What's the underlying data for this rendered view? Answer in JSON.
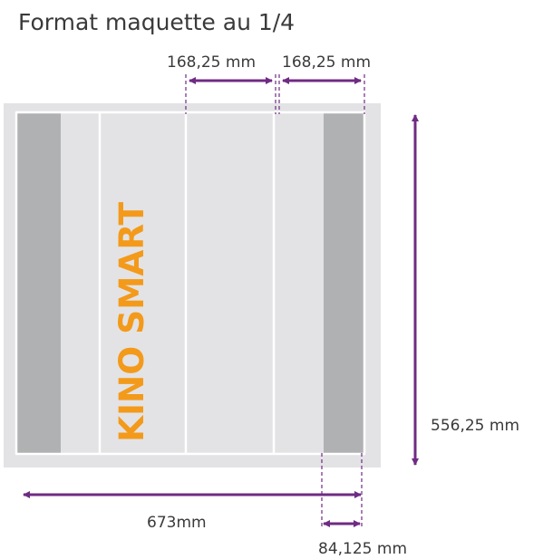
{
  "title": "Format maquette au 1/4",
  "brand": "KINO SMART",
  "dimensions": {
    "panel_width_1": "168,25 mm",
    "panel_width_2": "168,25 mm",
    "height": "556,25 mm",
    "total_width": "673mm",
    "side_width": "84,125 mm"
  },
  "colors": {
    "arrow": "#6f2b83",
    "brand_text": "#f39a1b",
    "panel_light": "#e3e3e5",
    "panel_dark": "#b0b1b3",
    "divider": "#ffffff",
    "text": "#3a3a3a"
  }
}
